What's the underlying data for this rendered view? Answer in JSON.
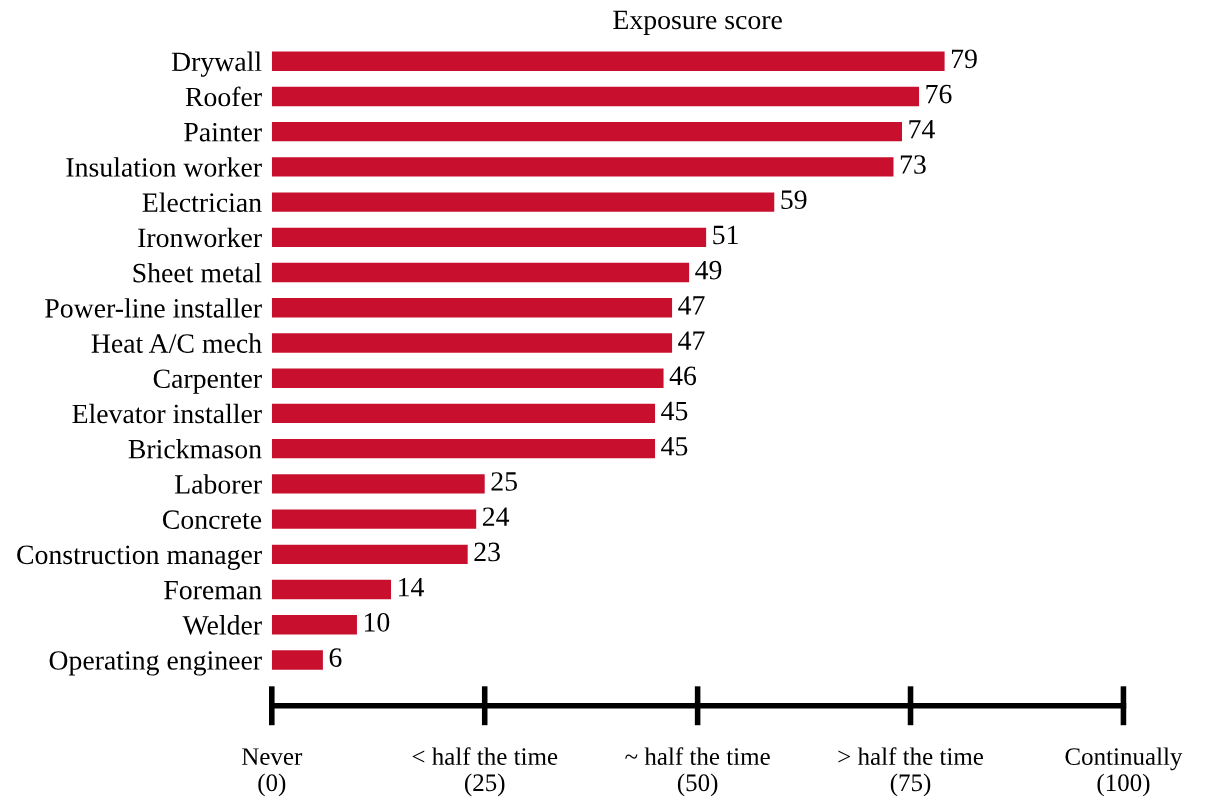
{
  "chart_data": {
    "type": "bar",
    "orientation": "horizontal",
    "title": "Exposure score",
    "categories": [
      "Drywall",
      "Roofer",
      "Painter",
      "Insulation worker",
      "Electrician",
      "Ironworker",
      "Sheet metal",
      "Power-line installer",
      "Heat A/C mech",
      "Carpenter",
      "Elevator installer",
      "Brickmason",
      "Laborer",
      "Concrete",
      "Construction manager",
      "Foreman",
      "Welder",
      "Operating engineer"
    ],
    "values": [
      79,
      76,
      74,
      73,
      59,
      51,
      49,
      47,
      47,
      46,
      45,
      45,
      25,
      24,
      23,
      14,
      10,
      6
    ],
    "color": "#c8102e",
    "xlim": [
      0,
      100
    ],
    "xticks": [
      {
        "value": 0,
        "label": "Never\n(0)"
      },
      {
        "value": 25,
        "label": "< half the time\n(25)"
      },
      {
        "value": 50,
        "label": "~ half the time\n(50)"
      },
      {
        "value": 75,
        "label": "> half the time\n(75)"
      },
      {
        "value": 100,
        "label": "Continually\n(100)"
      }
    ],
    "data_labels": true,
    "grid": false,
    "legend": false
  }
}
